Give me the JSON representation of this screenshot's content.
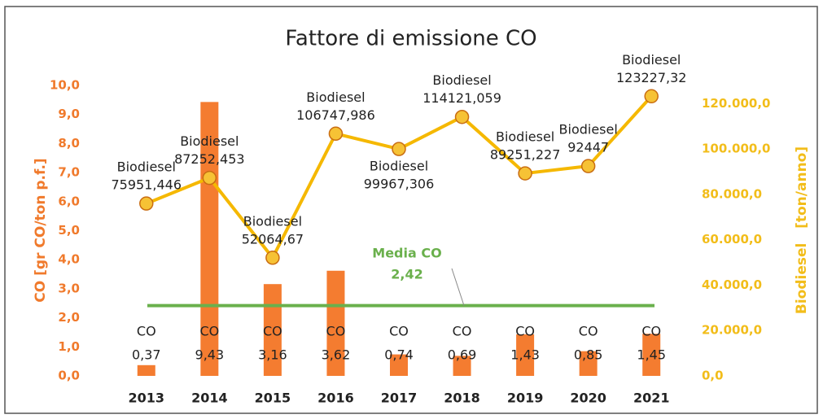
{
  "chart_data": {
    "type": "bar-line",
    "title": "Fattore di emissione CO",
    "categories": [
      "2013",
      "2014",
      "2015",
      "2016",
      "2017",
      "2018",
      "2019",
      "2020",
      "2021"
    ],
    "series": [
      {
        "name": "CO",
        "type": "bar",
        "color": "#f47c30",
        "values": [
          0.37,
          9.43,
          3.16,
          3.62,
          0.74,
          0.69,
          1.43,
          0.85,
          1.45
        ],
        "value_labels": [
          "0,37",
          "9,43",
          "3,16",
          "3,62",
          "0,74",
          "0,69",
          "1,43",
          "0,85",
          "1,45"
        ]
      },
      {
        "name": "Biodiesel",
        "type": "line",
        "axis": "y2",
        "color": "#f5b800",
        "values": [
          75951.446,
          87252.453,
          52064.67,
          106747.986,
          99967.306,
          114121.059,
          89251.227,
          92447,
          123227.32
        ],
        "value_labels": [
          "75951,446",
          "87252,453",
          "52064,67",
          "106747,986",
          "99967,306",
          "114121,059",
          "89251,227",
          "92447",
          "123227,32"
        ]
      }
    ],
    "reference_line": {
      "name": "Media CO",
      "value": 2.42,
      "label": "2,42",
      "color": "#6ab04c"
    },
    "ylabel": "CO [gr CO/ton p.f.]",
    "y2label": "Biodiesel   [ton/anno]",
    "ylim": [
      0,
      10
    ],
    "yticks": [
      {
        "value": 0,
        "label": "0,0"
      },
      {
        "value": 1,
        "label": "1,0"
      },
      {
        "value": 2,
        "label": "2,0"
      },
      {
        "value": 3,
        "label": "3,0"
      },
      {
        "value": 4,
        "label": "4,0"
      },
      {
        "value": 5,
        "label": "5,0"
      },
      {
        "value": 6,
        "label": "6,0"
      },
      {
        "value": 7,
        "label": "7,0"
      },
      {
        "value": 8,
        "label": "8,0"
      },
      {
        "value": 9,
        "label": "9,0"
      },
      {
        "value": 10,
        "label": "10,0"
      }
    ],
    "y2lim": [
      0,
      128000
    ],
    "y2ticks": [
      {
        "value": 0,
        "label": "0,0"
      },
      {
        "value": 20000,
        "label": "20.000,0"
      },
      {
        "value": 40000,
        "label": "40.000,0"
      },
      {
        "value": 60000,
        "label": "60.000,0"
      },
      {
        "value": 80000,
        "label": "80.000,0"
      },
      {
        "value": 100000,
        "label": "100.000,0"
      },
      {
        "value": 120000,
        "label": "120.000,0"
      }
    ]
  }
}
